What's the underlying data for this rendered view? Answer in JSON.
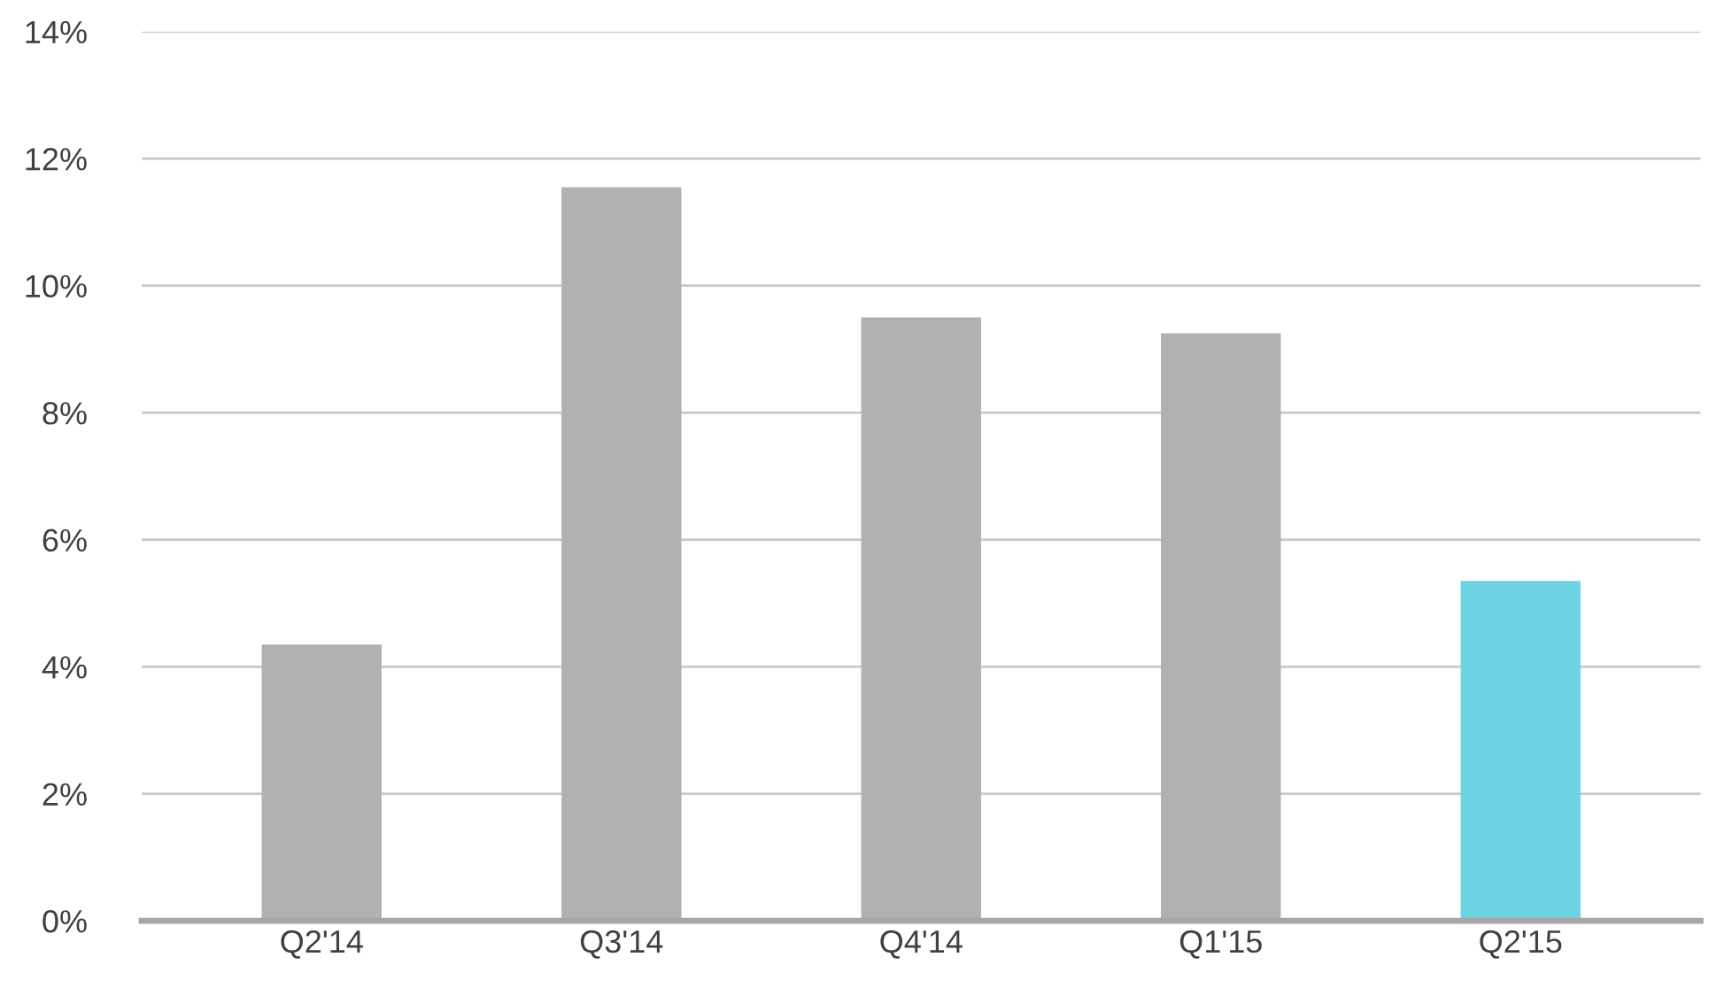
{
  "chart_data": {
    "type": "bar",
    "categories": [
      "Q2'14",
      "Q3'14",
      "Q4'14",
      "Q1'15",
      "Q2'15"
    ],
    "values": [
      4.35,
      11.55,
      9.5,
      9.25,
      5.35
    ],
    "colors": [
      "#b0b1b0",
      "#b0b1b0",
      "#b0b1b0",
      "#b0b1b0",
      "#6dd3e3"
    ],
    "ylim": [
      0,
      14
    ],
    "yticks": [
      {
        "value": 0,
        "label": "0%"
      },
      {
        "value": 2,
        "label": "2%"
      },
      {
        "value": 4,
        "label": "4%"
      },
      {
        "value": 6,
        "label": "6%"
      },
      {
        "value": 8,
        "label": "8%"
      },
      {
        "value": 10,
        "label": "10%"
      },
      {
        "value": 12,
        "label": "12%"
      },
      {
        "value": 14,
        "label": "14%"
      }
    ],
    "grid": "y"
  }
}
